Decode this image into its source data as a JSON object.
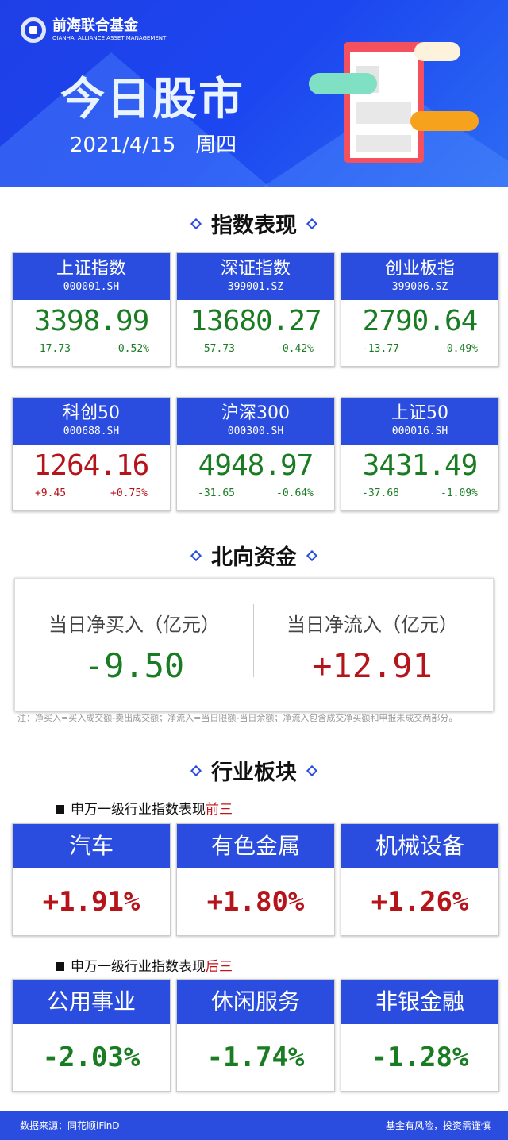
{
  "banner": {
    "logo_cn": "前海联合基金",
    "logo_en": "QIANHAI ALLIANCE ASSET MANAGEMENT",
    "title": "今日股市",
    "date": "2021/4/15",
    "weekday": "周四"
  },
  "colors": {
    "brand_blue": "#2a4de0",
    "up_red": "#b5141a",
    "down_green": "#1a7c22"
  },
  "index_section": {
    "title": "指数表现",
    "cards": [
      {
        "name": "上证指数",
        "code": "000001.SH",
        "value": "3398.99",
        "change": "-17.73",
        "pct": "-0.52%",
        "dir": "down"
      },
      {
        "name": "深证指数",
        "code": "399001.SZ",
        "value": "13680.27",
        "change": "-57.73",
        "pct": "-0.42%",
        "dir": "down"
      },
      {
        "name": "创业板指",
        "code": "399006.SZ",
        "value": "2790.64",
        "change": "-13.77",
        "pct": "-0.49%",
        "dir": "down"
      },
      {
        "name": "科创50",
        "code": "000688.SH",
        "value": "1264.16",
        "change": "+9.45",
        "pct": "+0.75%",
        "dir": "up"
      },
      {
        "name": "沪深300",
        "code": "000300.SH",
        "value": "4948.97",
        "change": "-31.65",
        "pct": "-0.64%",
        "dir": "down"
      },
      {
        "name": "上证50",
        "code": "000016.SH",
        "value": "3431.49",
        "change": "-37.68",
        "pct": "-1.09%",
        "dir": "down"
      }
    ]
  },
  "northbound": {
    "title": "北向资金",
    "buy_label": "当日净买入（亿元）",
    "buy_value": "-9.50",
    "flow_label": "当日净流入（亿元）",
    "flow_value": "+12.91",
    "note": "注：净买入=买入成交额-卖出成交额；净流入=当日限额-当日余额；净流入包含成交净买额和申报未成交两部分。"
  },
  "industry": {
    "title": "行业板块",
    "top_label_prefix": "申万一级行业指数表现",
    "top_label_hl": "前三",
    "top": [
      {
        "name": "汽车",
        "pct": "+1.91%"
      },
      {
        "name": "有色金属",
        "pct": "+1.80%"
      },
      {
        "name": "机械设备",
        "pct": "+1.26%"
      }
    ],
    "bottom_label_prefix": "申万一级行业指数表现",
    "bottom_label_hl": "后三",
    "bottom": [
      {
        "name": "公用事业",
        "pct": "-2.03%"
      },
      {
        "name": "休闲服务",
        "pct": "-1.74%"
      },
      {
        "name": "非银金融",
        "pct": "-1.28%"
      }
    ]
  },
  "footer": {
    "source": "数据来源：同花顺iFinD",
    "disclaimer": "基金有风险，投资需谨慎"
  }
}
